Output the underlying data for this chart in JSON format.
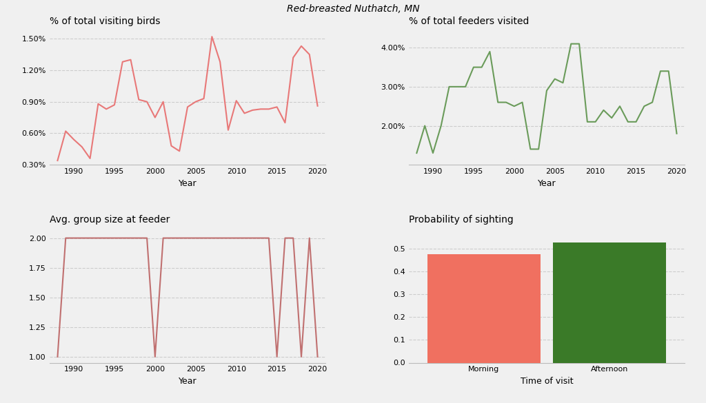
{
  "title": "Red-breasted Nuthatch, MN",
  "bg_color": "#f0f0f0",
  "plot_bg_color": "#f0f0f0",
  "plot1_title": "% of total visiting birds",
  "plot1_xlabel": "Year",
  "plot1_years": [
    1988,
    1989,
    1990,
    1991,
    1992,
    1993,
    1994,
    1995,
    1996,
    1997,
    1998,
    1999,
    2000,
    2001,
    2002,
    2003,
    2004,
    2005,
    2006,
    2007,
    2008,
    2009,
    2010,
    2011,
    2012,
    2013,
    2014,
    2015,
    2016,
    2017,
    2018,
    2019,
    2020
  ],
  "plot1_values": [
    0.0034,
    0.0062,
    0.0054,
    0.0047,
    0.0036,
    0.0088,
    0.0083,
    0.0087,
    0.0128,
    0.013,
    0.0092,
    0.009,
    0.0075,
    0.009,
    0.0048,
    0.0043,
    0.0085,
    0.009,
    0.0093,
    0.0152,
    0.0128,
    0.0063,
    0.0091,
    0.0079,
    0.0082,
    0.0083,
    0.0083,
    0.0085,
    0.007,
    0.0132,
    0.0143,
    0.0135,
    0.0086
  ],
  "plot1_color": "#e87878",
  "plot1_ylim": [
    0.003,
    0.016
  ],
  "plot1_yticks": [
    0.003,
    0.006,
    0.009,
    0.012,
    0.015
  ],
  "plot1_ytick_labels": [
    "0.30%",
    "0.60%",
    "0.90%",
    "1.20%",
    "1.50%"
  ],
  "plot2_title": "% of total feeders visited",
  "plot2_xlabel": "Year",
  "plot2_years": [
    1988,
    1989,
    1990,
    1991,
    1992,
    1993,
    1994,
    1995,
    1996,
    1997,
    1998,
    1999,
    2000,
    2001,
    2002,
    2003,
    2004,
    2005,
    2006,
    2007,
    2008,
    2009,
    2010,
    2011,
    2012,
    2013,
    2014,
    2015,
    2016,
    2017,
    2018,
    2019,
    2020
  ],
  "plot2_values": [
    0.013,
    0.02,
    0.013,
    0.02,
    0.03,
    0.03,
    0.03,
    0.035,
    0.035,
    0.039,
    0.026,
    0.026,
    0.025,
    0.026,
    0.014,
    0.014,
    0.029,
    0.032,
    0.031,
    0.041,
    0.041,
    0.021,
    0.021,
    0.024,
    0.022,
    0.025,
    0.021,
    0.021,
    0.025,
    0.026,
    0.034,
    0.034,
    0.018
  ],
  "plot2_color": "#6a9b5a",
  "plot2_ylim": [
    0.01,
    0.045
  ],
  "plot2_yticks": [
    0.02,
    0.03,
    0.04
  ],
  "plot2_ytick_labels": [
    "2.00%",
    "3.00%",
    "4.00%"
  ],
  "plot3_title": "Avg. group size at feeder",
  "plot3_xlabel": "Year",
  "plot3_years": [
    1988,
    1989,
    1990,
    1991,
    1992,
    1993,
    1994,
    1995,
    1996,
    1997,
    1998,
    1999,
    2000,
    2001,
    2002,
    2003,
    2004,
    2005,
    2006,
    2007,
    2008,
    2009,
    2010,
    2011,
    2012,
    2013,
    2014,
    2015,
    2016,
    2017,
    2018,
    2019,
    2020
  ],
  "plot3_values": [
    1.0,
    2.0,
    2.0,
    2.0,
    2.0,
    2.0,
    2.0,
    2.0,
    2.0,
    2.0,
    2.0,
    2.0,
    1.0,
    2.0,
    2.0,
    2.0,
    2.0,
    2.0,
    2.0,
    2.0,
    2.0,
    2.0,
    2.0,
    2.0,
    2.0,
    2.0,
    2.0,
    1.0,
    2.0,
    2.0,
    1.0,
    2.0,
    1.0
  ],
  "plot3_color": "#c07070",
  "plot3_ylim": [
    0.95,
    2.1
  ],
  "plot3_yticks": [
    1.0,
    1.25,
    1.5,
    1.75,
    2.0
  ],
  "plot3_ytick_labels": [
    "1.00",
    "1.25",
    "1.50",
    "1.75",
    "2.00"
  ],
  "plot4_title": "Probability of sighting",
  "plot4_xlabel": "Time of visit",
  "plot4_categories": [
    "Morning",
    "Afternoon"
  ],
  "plot4_values": [
    0.477,
    0.528
  ],
  "plot4_colors": [
    "#f07060",
    "#3a7a28"
  ],
  "plot4_ylim": [
    0,
    0.6
  ],
  "plot4_yticks": [
    0.0,
    0.1,
    0.2,
    0.3,
    0.4,
    0.5
  ]
}
